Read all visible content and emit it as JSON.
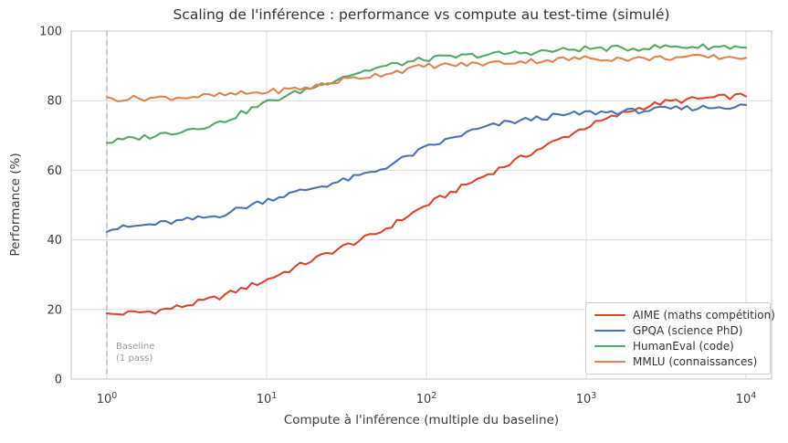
{
  "chart": {
    "title": "Scaling de l'inférence : performance vs compute au test-time (simulé)",
    "xlabel": "Compute à l'inférence (multiple du baseline)",
    "ylabel": "Performance (%)",
    "annotation": {
      "line1": "Baseline",
      "line2": "(1 pass)",
      "anchored_at_x": 1
    }
  },
  "chart_data": {
    "type": "line",
    "title": "Scaling de l'inférence : performance vs compute au test-time (simulé)",
    "xlabel": "Compute à l'inférence (multiple du baseline)",
    "ylabel": "Performance (%)",
    "x_scale": "log10",
    "x_ticks": [
      1,
      10,
      100,
      1000,
      10000
    ],
    "x_tick_exponents": [
      0,
      1,
      2,
      3,
      4
    ],
    "y_ticks": [
      0,
      20,
      40,
      60,
      80,
      100
    ],
    "ylim": [
      0,
      100
    ],
    "xlim_log10": [
      -0.22,
      4.16
    ],
    "grid": true,
    "legend_position": "lower right",
    "baseline_x": 1,
    "noise_amplitude": 0.8,
    "points_per_series": 120,
    "x_anchors_log10": [
      0,
      0.3,
      0.48,
      0.7,
      1,
      1.3,
      1.48,
      1.7,
      2,
      2.3,
      2.48,
      2.7,
      3,
      3.3,
      3.48,
      3.7,
      4
    ],
    "series": [
      {
        "name": "AIME (maths compétition)",
        "color": "#d6482f",
        "values": [
          18.5,
          19.5,
          21,
          23.5,
          28.5,
          34.5,
          38,
          42,
          50,
          57,
          61,
          66,
          72.5,
          77.5,
          79.5,
          80.5,
          81.5
        ]
      },
      {
        "name": "GPQA (science PhD)",
        "color": "#4c72b0",
        "values": [
          43,
          44.5,
          45.5,
          47,
          51.5,
          55,
          57,
          60,
          66.5,
          71.5,
          73.5,
          75,
          76.5,
          77,
          77.5,
          78,
          78.5
        ]
      },
      {
        "name": "HumanEval (code)",
        "color": "#55a868",
        "values": [
          68,
          70,
          71.5,
          73.5,
          79.5,
          84,
          87,
          89.5,
          92,
          93,
          93.5,
          94,
          95,
          95,
          95.5,
          95.5,
          95.5
        ]
      },
      {
        "name": "MMLU (connaissances)",
        "color": "#dd8452",
        "values": [
          80.5,
          80.8,
          81,
          81.5,
          82.5,
          84,
          86,
          87.5,
          90,
          90.5,
          91,
          91.5,
          92.2,
          92,
          92.3,
          92.5,
          92.5
        ]
      }
    ],
    "grid_color": "#dcdcdc",
    "spine_color": "#c6c6c6",
    "baseline_line_color": "#b5b5b5",
    "text_color": "#3c3c3c"
  }
}
